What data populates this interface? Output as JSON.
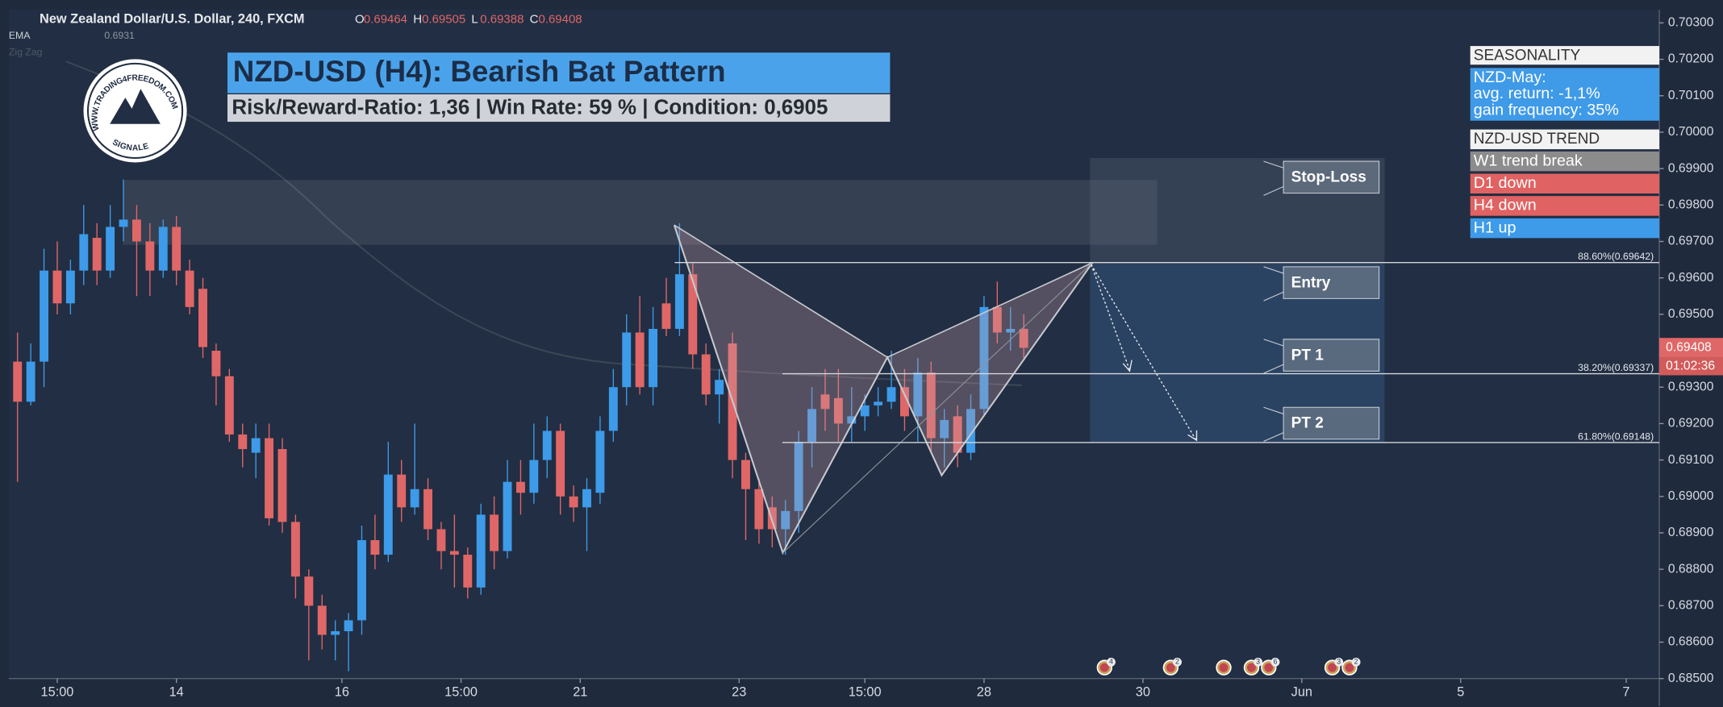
{
  "chart_data": {
    "type": "candlestick",
    "title": "NZD-USD (H4): Bearish Bat Pattern",
    "subtitle": "Risk/Reward-Ratio: 1,36 | Win Rate: 59 % | Condition: 0,6905",
    "symbol": "New Zealand Dollar/U.S. Dollar, 240, FXCM",
    "ohlc_legend": [
      {
        "label": "O",
        "value": 0.69464
      },
      {
        "label": "H",
        "value": 0.69505
      },
      {
        "label": "L",
        "value": 0.69388
      },
      {
        "label": "C",
        "value": 0.69408
      }
    ],
    "ema": {
      "label": "EMA",
      "value": 0.6931
    },
    "zigzag": "Zig Zag",
    "last_price": 0.69408,
    "countdown": "01:02:36",
    "up_color": "#3d9be9",
    "down_color": "#e06767",
    "open": [
      0.6937,
      0.6926,
      0.6937,
      0.6962,
      0.6953,
      0.6962,
      0.6971,
      0.6962,
      0.6974,
      0.6976,
      0.697,
      0.6962,
      0.6974,
      0.6962,
      0.6957,
      0.694,
      0.6933,
      0.6917,
      0.6912,
      0.6916,
      0.6913,
      0.6893,
      0.6878,
      0.687,
      0.6862,
      0.6863,
      0.6866,
      0.6888,
      0.6884,
      0.6906,
      0.6897,
      0.6902,
      0.6891,
      0.6885,
      0.6884,
      0.6875,
      0.6895,
      0.6885,
      0.6904,
      0.6901,
      0.691,
      0.6918,
      0.69,
      0.6897,
      0.6901,
      0.6918,
      0.693,
      0.6945,
      0.693,
      0.6953,
      0.6946,
      0.6961,
      0.6939,
      0.6928,
      0.6942,
      0.691,
      0.6902,
      0.6897,
      0.6891,
      0.6896,
      0.6915,
      0.6928,
      0.6927,
      0.692,
      0.6922,
      0.6925,
      0.6926,
      0.693,
      0.6922,
      0.6934,
      0.6916,
      0.6922,
      0.6912,
      0.6924,
      0.6952,
      0.6945,
      0.6946
    ],
    "high": [
      0.6945,
      0.6942,
      0.6968,
      0.697,
      0.6965,
      0.698,
      0.6975,
      0.698,
      0.6987,
      0.698,
      0.6975,
      0.6976,
      0.6977,
      0.6965,
      0.696,
      0.6942,
      0.6935,
      0.692,
      0.692,
      0.692,
      0.6916,
      0.6895,
      0.688,
      0.6873,
      0.6866,
      0.6868,
      0.6892,
      0.6895,
      0.6915,
      0.691,
      0.692,
      0.6905,
      0.6893,
      0.6895,
      0.6886,
      0.6898,
      0.69,
      0.691,
      0.691,
      0.692,
      0.6922,
      0.692,
      0.6903,
      0.6905,
      0.6922,
      0.6935,
      0.695,
      0.6955,
      0.6952,
      0.696,
      0.6975,
      0.6964,
      0.6942,
      0.6935,
      0.6945,
      0.6912,
      0.6905,
      0.69,
      0.6899,
      0.6918,
      0.693,
      0.6935,
      0.6935,
      0.693,
      0.6928,
      0.693,
      0.694,
      0.6935,
      0.6938,
      0.6937,
      0.6924,
      0.6925,
      0.6928,
      0.6955,
      0.6959,
      0.6952,
      0.695
    ],
    "low": [
      0.6904,
      0.6925,
      0.693,
      0.695,
      0.695,
      0.6958,
      0.6958,
      0.696,
      0.697,
      0.6955,
      0.6955,
      0.696,
      0.6958,
      0.695,
      0.6938,
      0.6925,
      0.6915,
      0.6908,
      0.6905,
      0.6892,
      0.689,
      0.6872,
      0.6855,
      0.6858,
      0.6855,
      0.6852,
      0.6862,
      0.688,
      0.6882,
      0.6893,
      0.6895,
      0.6888,
      0.688,
      0.6875,
      0.6872,
      0.6873,
      0.688,
      0.6883,
      0.6895,
      0.6898,
      0.6905,
      0.6895,
      0.6893,
      0.6885,
      0.6898,
      0.6915,
      0.6925,
      0.6928,
      0.6925,
      0.6944,
      0.6944,
      0.6935,
      0.6925,
      0.692,
      0.6905,
      0.6888,
      0.6887,
      0.6886,
      0.6884,
      0.689,
      0.6908,
      0.6918,
      0.6915,
      0.6915,
      0.6918,
      0.6922,
      0.6924,
      0.6918,
      0.6915,
      0.6912,
      0.6908,
      0.6908,
      0.691,
      0.6922,
      0.6942,
      0.694,
      0.6938
    ],
    "close": [
      0.6926,
      0.6937,
      0.6962,
      0.6953,
      0.6962,
      0.6972,
      0.6962,
      0.6974,
      0.6976,
      0.697,
      0.6962,
      0.6974,
      0.6962,
      0.6952,
      0.6941,
      0.6933,
      0.6917,
      0.6913,
      0.6916,
      0.6894,
      0.6893,
      0.6878,
      0.687,
      0.6862,
      0.6863,
      0.6866,
      0.6888,
      0.6884,
      0.6906,
      0.6897,
      0.6902,
      0.6891,
      0.6885,
      0.6884,
      0.6875,
      0.6895,
      0.6885,
      0.6904,
      0.6901,
      0.691,
      0.6918,
      0.69,
      0.6897,
      0.6902,
      0.6918,
      0.693,
      0.6945,
      0.693,
      0.6946,
      0.6946,
      0.6961,
      0.6939,
      0.6928,
      0.6932,
      0.691,
      0.6902,
      0.6891,
      0.6891,
      0.6896,
      0.6915,
      0.6924,
      0.6924,
      0.692,
      0.6922,
      0.6925,
      0.6926,
      0.693,
      0.6922,
      0.6934,
      0.6916,
      0.6921,
      0.6912,
      0.6924,
      0.6952,
      0.6945,
      0.6946,
      0.69408
    ],
    "xlim": [
      -0.66,
      124
    ],
    "xticks": [
      {
        "value": 3,
        "label": "15:00"
      },
      {
        "value": 12,
        "label": "14"
      },
      {
        "value": 24.5,
        "label": "16"
      },
      {
        "value": 33.5,
        "label": "15:00"
      },
      {
        "value": 42.5,
        "label": "21"
      },
      {
        "value": 54.5,
        "label": "23"
      },
      {
        "value": 64,
        "label": "15:00"
      },
      {
        "value": 73,
        "label": "28"
      },
      {
        "value": 85,
        "label": "30"
      },
      {
        "value": 97,
        "label": "Jun"
      },
      {
        "value": 109,
        "label": "5"
      },
      {
        "value": 121.5,
        "label": "7"
      }
    ],
    "ylim": [
      0.685,
      0.70336
    ],
    "yticks": [
      {
        "value": 0.703,
        "label": "0.70300"
      },
      {
        "value": 0.702,
        "label": "0.70200"
      },
      {
        "value": 0.701,
        "label": "0.70100"
      },
      {
        "value": 0.7,
        "label": "0.70000"
      },
      {
        "value": 0.699,
        "label": "0.69900"
      },
      {
        "value": 0.698,
        "label": "0.69800"
      },
      {
        "value": 0.697,
        "label": "0.69700"
      },
      {
        "value": 0.696,
        "label": "0.69600"
      },
      {
        "value": 0.695,
        "label": "0.69500"
      },
      {
        "value": 0.694,
        "label": "0.69400"
      },
      {
        "value": 0.693,
        "label": "0.69300"
      },
      {
        "value": 0.692,
        "label": "0.69200"
      },
      {
        "value": 0.691,
        "label": "0.69100"
      },
      {
        "value": 0.69,
        "label": "0.69000"
      },
      {
        "value": 0.689,
        "label": "0.68900"
      },
      {
        "value": 0.688,
        "label": "0.68800"
      },
      {
        "value": 0.687,
        "label": "0.68700"
      },
      {
        "value": 0.686,
        "label": "0.68600"
      },
      {
        "value": 0.685,
        "label": "0.68500"
      }
    ],
    "pattern": {
      "x": [
        49.6,
        57.8,
        65.7,
        69.8,
        81.2
      ],
      "y": [
        0.69745,
        0.68845,
        0.69382,
        0.69058,
        0.69642
      ]
    },
    "fib_levels": [
      {
        "value": 0.69642,
        "label": "88.60%(0.69642)"
      },
      {
        "value": 0.69337,
        "label": "38.20%(0.69337)"
      },
      {
        "value": 0.69148,
        "label": "61.80%(0.69148)"
      }
    ],
    "trade_labels": [
      "Stop-Loss",
      "Entry",
      "PT 1",
      "PT 2"
    ],
    "events": [
      {
        "x": 82.1,
        "count": 4
      },
      {
        "x": 87.1,
        "count": 2
      },
      {
        "x": 91.1
      },
      {
        "x": 93.2,
        "count": 3
      },
      {
        "x": 94.5,
        "count": 6
      },
      {
        "x": 99.3,
        "count": 3
      },
      {
        "x": 100.6,
        "count": 2
      }
    ],
    "seasonality": {
      "title": "SEASONALITY",
      "lines": [
        "NZD-May:",
        "avg. return: -1,1%",
        "gain frequency: 35%"
      ]
    },
    "trend": {
      "title": "NZD-USD TREND",
      "rows": [
        {
          "label": "W1 trend break",
          "color": "#8c8c8c"
        },
        {
          "label": "D1 down",
          "color": "#e06262"
        },
        {
          "label": "H4 down",
          "color": "#e06262"
        },
        {
          "label": "H1 up",
          "color": "#3d9be9"
        }
      ]
    },
    "logo": {
      "text": "WWW.TRADING4FREEDOM.COM",
      "sub": "SIGNALE"
    }
  }
}
